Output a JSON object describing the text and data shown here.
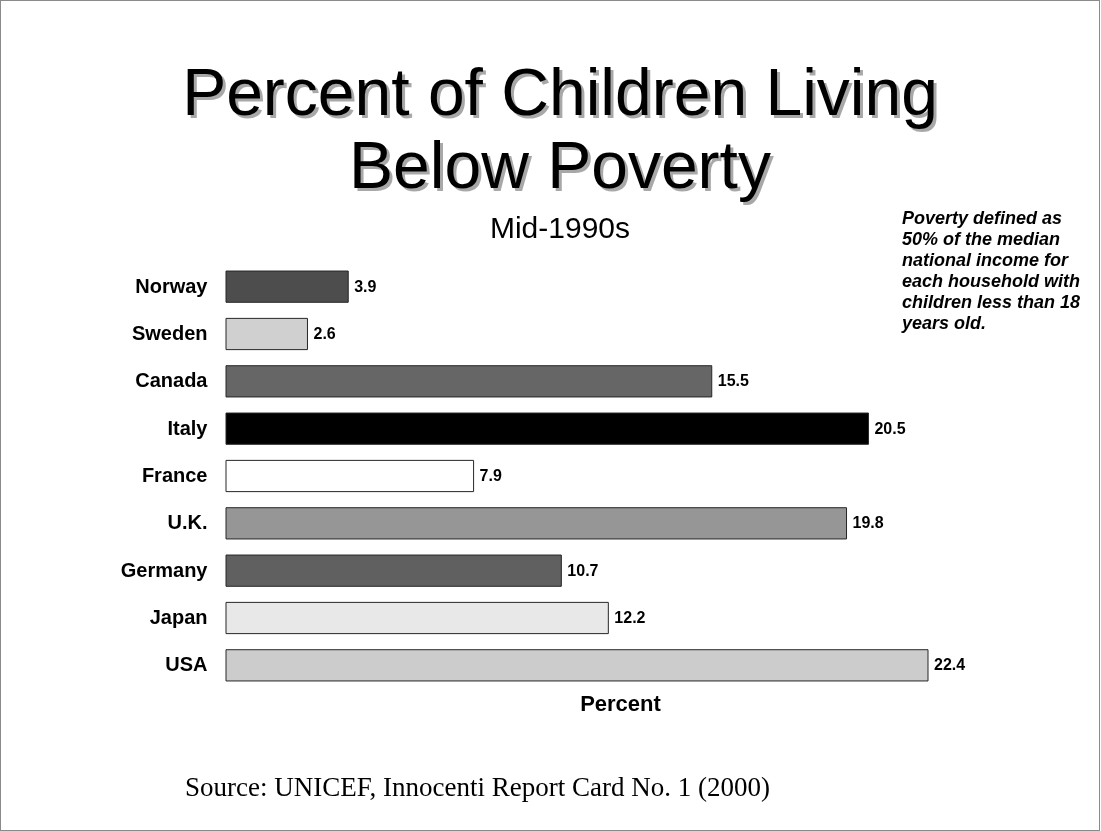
{
  "chart_data": {
    "type": "bar",
    "orientation": "horizontal",
    "title": "Percent of Children Living Below Poverty",
    "subtitle": "Mid-1990s",
    "xlabel": "Percent",
    "categories": [
      "Norway",
      "Sweden",
      "Canada",
      "Italy",
      "France",
      "U.K.",
      "Germany",
      "Japan",
      "USA"
    ],
    "values": [
      3.9,
      2.6,
      15.5,
      20.5,
      7.9,
      19.8,
      10.7,
      12.2,
      22.4
    ],
    "colors": [
      "#4d4d4d",
      "#d0d0d0",
      "#666666",
      "#000000",
      "#ffffff",
      "#969696",
      "#606060",
      "#e8e8e8",
      "#cccccc"
    ],
    "data_labels": true,
    "tick_labels": "y",
    "annotations": [
      "Poverty defined as 50% of the median national income for each household with children less than 18 years old.",
      "Source: UNICEF, Innocenti Report Card No. 1 (2000)"
    ]
  }
}
